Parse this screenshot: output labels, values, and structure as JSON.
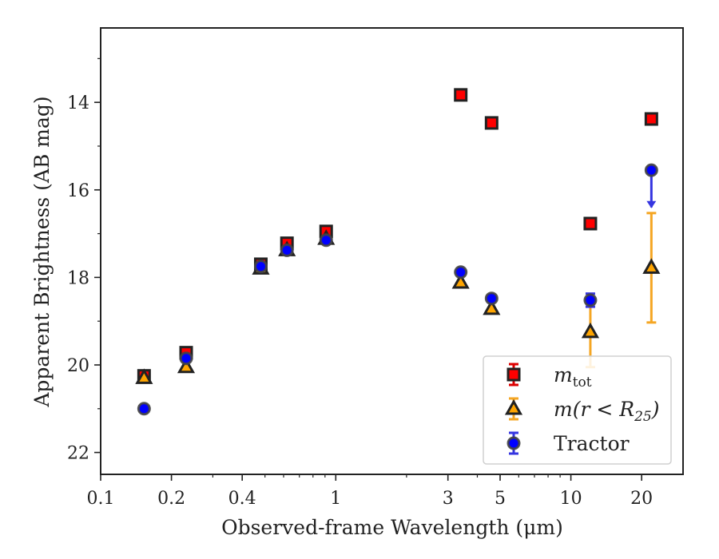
{
  "chart_data": {
    "type": "scatter",
    "title": "",
    "xlabel": "Observed-frame Wavelength (μm)",
    "ylabel": "Apparent Brightness (AB mag)",
    "xscale": "log",
    "xlim": [
      0.1,
      30
    ],
    "ylim": [
      22.5,
      12.3
    ],
    "y_inverted": true,
    "x_ticks": [
      0.1,
      0.2,
      0.4,
      1,
      3,
      5,
      10,
      20
    ],
    "x_tick_labels": [
      "0.1",
      "0.2",
      "0.4",
      "1",
      "3",
      "5",
      "10",
      "20"
    ],
    "y_ticks": [
      14,
      16,
      18,
      20,
      22
    ],
    "y_tick_labels": [
      "14",
      "16",
      "18",
      "20",
      "22"
    ],
    "grid": false,
    "legend_position": "lower-right",
    "series": [
      {
        "name": "m_tot",
        "legend_label": {
          "main": "m",
          "sub": "tot"
        },
        "marker": "square",
        "face_color": "#ff0000",
        "edge_color": "#222222",
        "err_color": "#dd0000",
        "points": [
          {
            "x": 0.153,
            "y": 20.25
          },
          {
            "x": 0.231,
            "y": 19.72
          },
          {
            "x": 0.48,
            "y": 17.7
          },
          {
            "x": 0.62,
            "y": 17.22
          },
          {
            "x": 0.91,
            "y": 16.95
          },
          {
            "x": 3.4,
            "y": 13.83
          },
          {
            "x": 4.6,
            "y": 14.47
          },
          {
            "x": 12.1,
            "y": 16.77
          },
          {
            "x": 22.0,
            "y": 14.38
          }
        ]
      },
      {
        "name": "m(r < R25)",
        "legend_label": {
          "main": "m(r < R",
          "sub": "25",
          "tail": ")"
        },
        "marker": "triangle",
        "face_color": "#ffa500",
        "edge_color": "#222222",
        "err_color": "#f5a623",
        "points": [
          {
            "x": 0.153,
            "y": 20.3
          },
          {
            "x": 0.231,
            "y": 20.05
          },
          {
            "x": 0.48,
            "y": 17.8
          },
          {
            "x": 0.62,
            "y": 17.38
          },
          {
            "x": 0.91,
            "y": 17.12
          },
          {
            "x": 3.4,
            "y": 18.12
          },
          {
            "x": 4.6,
            "y": 18.72
          },
          {
            "x": 12.1,
            "y": 19.25,
            "err_lower": 0.8,
            "err_upper": 0.65
          },
          {
            "x": 22.0,
            "y": 17.78,
            "err_lower": 1.25,
            "err_upper": 1.25
          }
        ]
      },
      {
        "name": "Tractor",
        "legend_label": {
          "main": "Tractor"
        },
        "marker": "circle",
        "face_color": "#0000ff",
        "edge_color": "#444444",
        "err_color": "#3535e0",
        "points": [
          {
            "x": 0.153,
            "y": 21.0
          },
          {
            "x": 0.231,
            "y": 19.85
          },
          {
            "x": 0.48,
            "y": 17.75
          },
          {
            "x": 0.62,
            "y": 17.38
          },
          {
            "x": 0.91,
            "y": 17.15
          },
          {
            "x": 3.4,
            "y": 17.88
          },
          {
            "x": 4.6,
            "y": 18.48
          },
          {
            "x": 12.1,
            "y": 18.52,
            "err_lower": 0.15,
            "err_upper": 0.15
          },
          {
            "x": 22.0,
            "y": 15.55,
            "err_lower": 0.85,
            "upper_limit_arrow": true
          }
        ]
      }
    ]
  }
}
